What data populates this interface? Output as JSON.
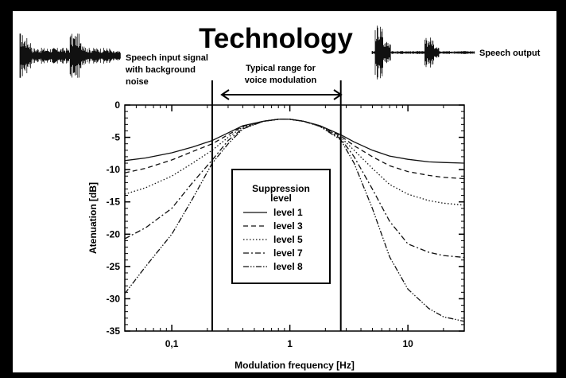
{
  "header": {
    "title": "Technology",
    "input_caption": [
      "Speech input signal",
      "with background",
      "noise"
    ],
    "output_caption": "Speech output",
    "range_caption": [
      "Typical range for",
      "voice modulation"
    ]
  },
  "chart_data": {
    "type": "line",
    "xlabel": "Modulation frequency [Hz]",
    "ylabel": "Atenuation [dB]",
    "xscale": "log",
    "xlim": [
      0.04,
      30
    ],
    "ylim": [
      -35,
      0
    ],
    "xticklabels": [
      {
        "value": 0.1,
        "label": "0,1"
      },
      {
        "value": 1,
        "label": "1"
      },
      {
        "value": 10,
        "label": "10"
      }
    ],
    "yticks": [
      0,
      -5,
      -10,
      -15,
      -20,
      -25,
      -30,
      -35
    ],
    "ytickformat": [
      "0",
      "-5",
      "-10",
      "-15",
      "-20",
      "-25",
      "-30",
      "-35"
    ],
    "grid": false,
    "range_markers": [
      0.22,
      2.7
    ],
    "legend": {
      "title": [
        "Suppression",
        "level"
      ],
      "placement": "center"
    },
    "series": [
      {
        "name": "level 1",
        "style": "solid",
        "x": [
          0.04,
          0.06,
          0.1,
          0.15,
          0.22,
          0.3,
          0.4,
          0.6,
          0.8,
          1.0,
          1.3,
          1.8,
          2.7,
          3.5,
          5,
          7,
          10,
          15,
          20,
          30
        ],
        "y": [
          -8.6,
          -8.2,
          -7.4,
          -6.5,
          -5.5,
          -4.3,
          -3.2,
          -2.5,
          -2.2,
          -2.2,
          -2.5,
          -3.2,
          -4.6,
          -5.7,
          -7.0,
          -7.9,
          -8.4,
          -8.8,
          -8.9,
          -9.0
        ]
      },
      {
        "name": "level 3",
        "style": "dashed",
        "x": [
          0.04,
          0.06,
          0.1,
          0.15,
          0.22,
          0.3,
          0.4,
          0.6,
          0.8,
          1.0,
          1.3,
          1.8,
          2.7,
          3.5,
          5,
          7,
          10,
          15,
          20,
          30
        ],
        "y": [
          -10.5,
          -9.8,
          -8.5,
          -7.2,
          -6.0,
          -4.6,
          -3.3,
          -2.5,
          -2.2,
          -2.2,
          -2.5,
          -3.2,
          -4.8,
          -6.3,
          -8.0,
          -9.4,
          -10.3,
          -10.9,
          -11.2,
          -11.4
        ]
      },
      {
        "name": "level 5",
        "style": "dotted",
        "x": [
          0.04,
          0.06,
          0.1,
          0.15,
          0.22,
          0.3,
          0.4,
          0.6,
          0.8,
          1.0,
          1.3,
          1.8,
          2.7,
          3.5,
          5,
          7,
          10,
          15,
          20,
          30
        ],
        "y": [
          -13.8,
          -12.8,
          -11.0,
          -9.0,
          -7.0,
          -5.0,
          -3.4,
          -2.5,
          -2.2,
          -2.2,
          -2.5,
          -3.2,
          -5.0,
          -7.0,
          -9.8,
          -12.3,
          -13.8,
          -14.8,
          -15.2,
          -15.5
        ]
      },
      {
        "name": "level 7",
        "style": "dashdot",
        "x": [
          0.04,
          0.06,
          0.1,
          0.15,
          0.22,
          0.3,
          0.4,
          0.6,
          0.8,
          1.0,
          1.3,
          1.8,
          2.7,
          3.5,
          5,
          7,
          10,
          15,
          20,
          30
        ],
        "y": [
          -20.7,
          -19.0,
          -16.0,
          -12.0,
          -8.5,
          -5.5,
          -3.6,
          -2.5,
          -2.2,
          -2.2,
          -2.5,
          -3.3,
          -5.2,
          -8.0,
          -13.0,
          -18.0,
          -21.5,
          -22.8,
          -23.3,
          -23.6
        ]
      },
      {
        "name": "level 8",
        "style": "dashdotdot",
        "x": [
          0.04,
          0.06,
          0.1,
          0.15,
          0.22,
          0.3,
          0.4,
          0.6,
          0.8,
          1.0,
          1.3,
          1.8,
          2.7,
          3.5,
          5,
          7,
          10,
          15,
          20,
          30
        ],
        "y": [
          -29.2,
          -25.0,
          -20.0,
          -14.5,
          -9.0,
          -6.0,
          -3.7,
          -2.5,
          -2.2,
          -2.2,
          -2.5,
          -3.3,
          -5.4,
          -9.0,
          -16.0,
          -23.5,
          -28.5,
          -31.5,
          -32.8,
          -33.5
        ]
      }
    ]
  }
}
